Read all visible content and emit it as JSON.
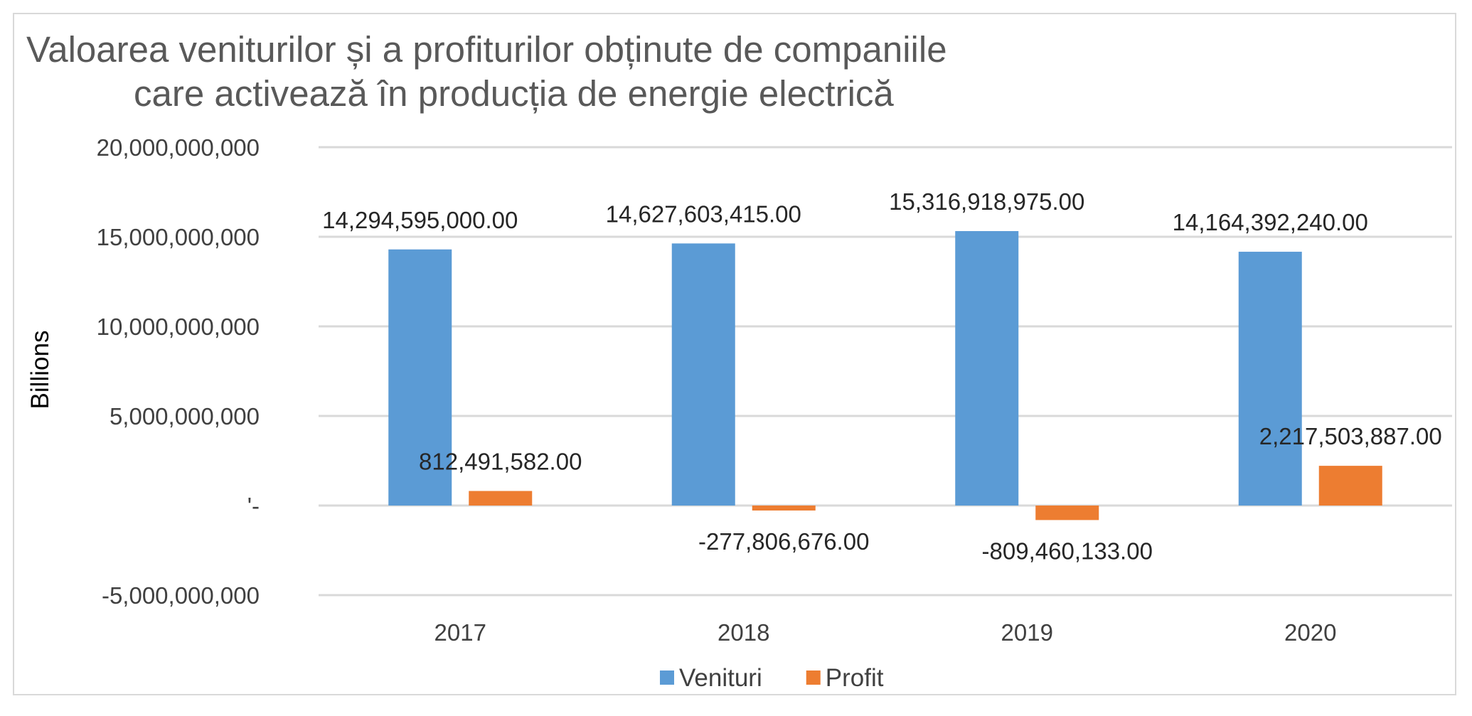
{
  "chart_data": {
    "type": "bar",
    "title_lines": [
      "Valoarea veniturilor și a profiturilor obținute de companiile",
      "care activează în producția de energie electrică"
    ],
    "ylabel": "Billions",
    "xlabel": "",
    "ylim": [
      -5000000000,
      20000000000
    ],
    "yticks": [
      20000000000,
      15000000000,
      10000000000,
      5000000000,
      0,
      -5000000000
    ],
    "ytick_labels": [
      "20,000,000,000",
      "15,000,000,000",
      "10,000,000,000",
      "5,000,000,000",
      "'-",
      "-5,000,000,000"
    ],
    "grid": true,
    "legend_position": "bottom",
    "categories": [
      "2017",
      "2018",
      "2019",
      "2020"
    ],
    "series": [
      {
        "name": "Venituri",
        "color": "#5b9bd5",
        "values": [
          14294595000.0,
          14627603415.0,
          15316918975.0,
          14164392240.0
        ],
        "labels": [
          "14,294,595,000.00",
          "14,627,603,415.00",
          "15,316,918,975.00",
          "14,164,392,240.00"
        ]
      },
      {
        "name": "Profit",
        "color": "#ed7d31",
        "values": [
          812491582.0,
          -277806676.0,
          -809460133.0,
          2217503887.0
        ],
        "labels": [
          "812,491,582.00",
          "-277,806,676.00",
          "-809,460,133.00",
          "2,217,503,887.00"
        ]
      }
    ]
  }
}
